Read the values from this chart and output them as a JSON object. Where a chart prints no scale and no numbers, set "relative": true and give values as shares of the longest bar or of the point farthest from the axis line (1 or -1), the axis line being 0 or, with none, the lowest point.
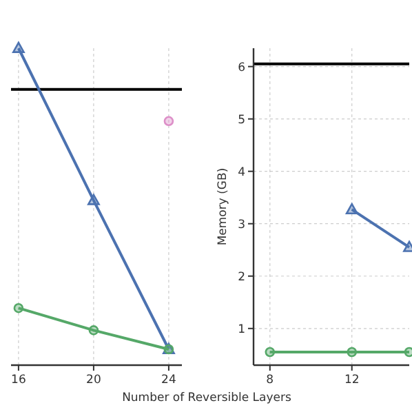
{
  "chart_data": [
    {
      "type": "line",
      "relative": true,
      "xlabel": "Number of Reversible Layers",
      "xlim": [
        15.6,
        24.7
      ],
      "xticks": [
        16,
        20,
        24
      ],
      "grid": true,
      "line_style": "solid",
      "series": [
        {
          "color": "#4c72b0",
          "x": [
            16,
            20,
            24
          ],
          "values": [
            1,
            0.52,
            0.05
          ],
          "marker": "triangle"
        },
        {
          "color": "#55a868",
          "x": [
            16,
            20,
            24
          ],
          "values": [
            0.18,
            0.11,
            0.05
          ],
          "marker": "circle"
        },
        {
          "type": "scatter",
          "color": "#dd8fc8",
          "x": [
            24
          ],
          "values": [
            0.77
          ],
          "marker": "circle"
        }
      ],
      "ref_lines": [
        {
          "axis": "y",
          "value": 0.87,
          "color": "#000000"
        }
      ]
    },
    {
      "type": "line",
      "ylabel": "Memory (GB)",
      "xlim": [
        7.2,
        14.8
      ],
      "xticks": [
        8,
        12
      ],
      "ylim": [
        0.3,
        6.35
      ],
      "yticks": [
        1,
        2,
        3,
        4,
        5,
        6
      ],
      "grid": true,
      "line_style": "solid",
      "series": [
        {
          "color": "#4c72b0",
          "x": [
            12,
            14.8
          ],
          "values": [
            3.27,
            2.55
          ],
          "marker": "triangle"
        },
        {
          "color": "#55a868",
          "x": [
            8,
            12,
            14.8
          ],
          "values": [
            0.55,
            0.55,
            0.55
          ],
          "marker": "circle"
        }
      ],
      "ref_lines": [
        {
          "axis": "y",
          "value": 6.05,
          "color": "#000000"
        }
      ]
    }
  ]
}
